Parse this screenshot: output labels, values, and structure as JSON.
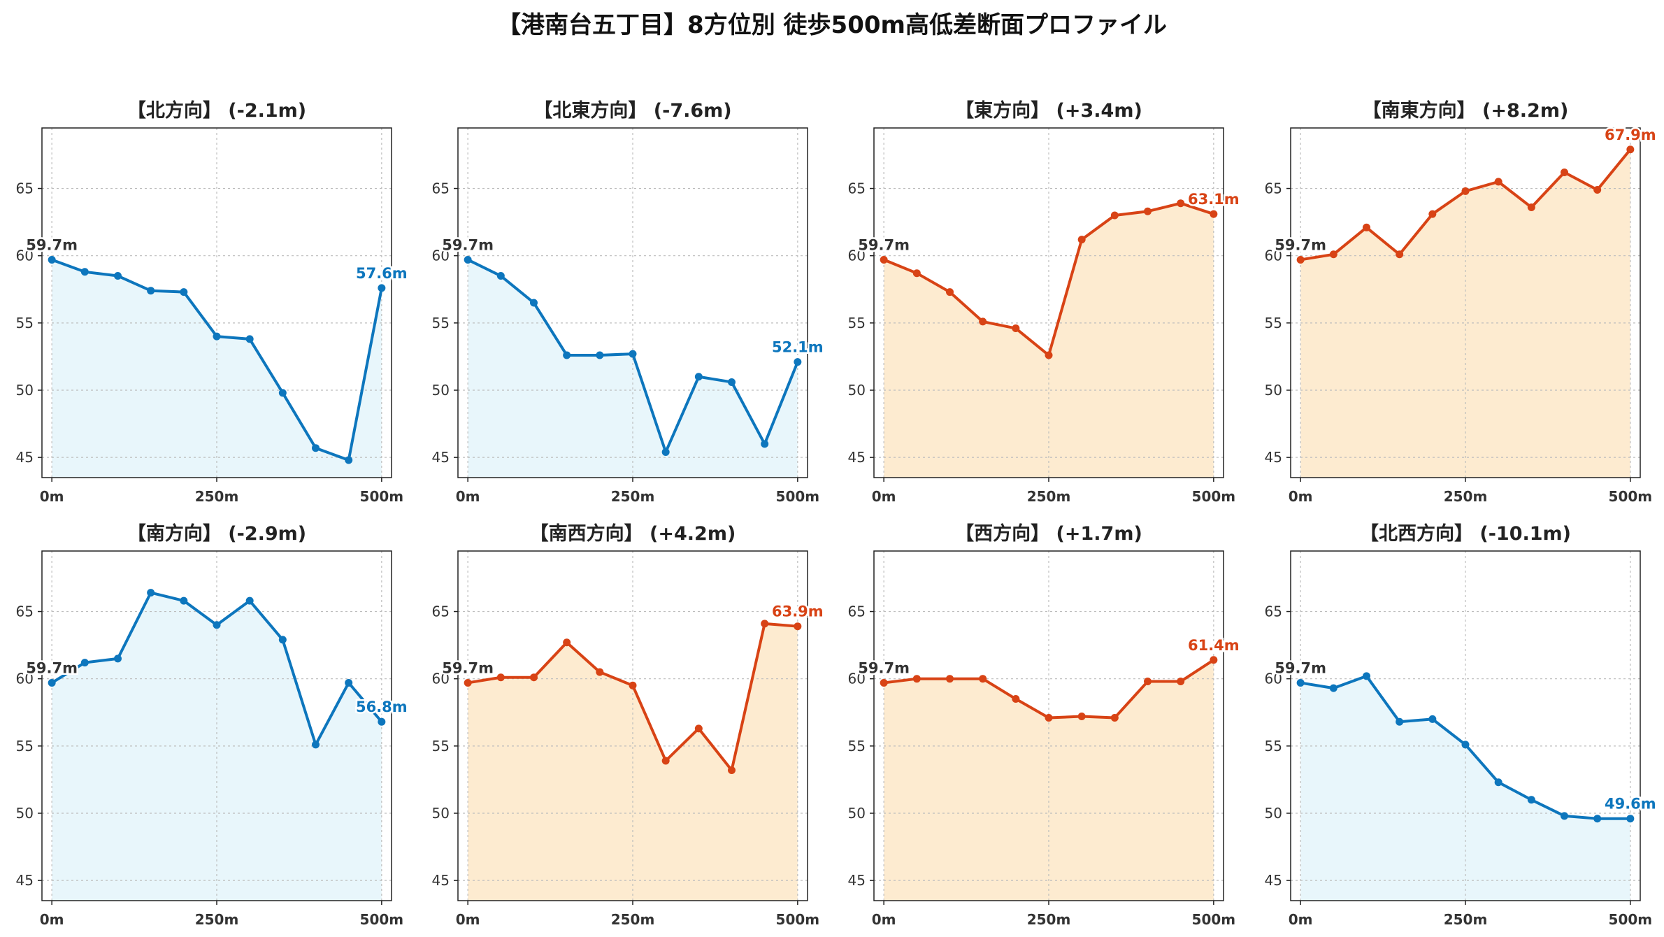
{
  "suptitle": "【港南台五丁目】8方位別 徒歩500m高低差断面プロファイル",
  "colors": {
    "up_line": "#d84315",
    "up_fill": "#fdebd0",
    "down_line": "#0d76bd",
    "down_fill": "#e8f6fb"
  },
  "chart_data": [
    {
      "type": "line",
      "title": "【北方向】 (-2.1m)",
      "trend": "down",
      "x": [
        0,
        50,
        100,
        150,
        200,
        250,
        300,
        350,
        400,
        450,
        500
      ],
      "y": [
        59.7,
        58.8,
        58.5,
        57.4,
        57.3,
        54.0,
        53.8,
        49.8,
        45.7,
        44.8,
        57.6
      ],
      "start_label": "59.7m",
      "end_label": "57.6m",
      "xticks": [
        0,
        250,
        500
      ],
      "xtick_labels": [
        "0m",
        "250m",
        "500m"
      ],
      "yticks": [
        45,
        50,
        55,
        60,
        65
      ],
      "ylim": [
        43.5,
        69.5
      ],
      "xlim": [
        -15,
        515
      ],
      "grid": true
    },
    {
      "type": "line",
      "title": "【北東方向】 (-7.6m)",
      "trend": "down",
      "x": [
        0,
        50,
        100,
        150,
        200,
        250,
        300,
        350,
        400,
        450,
        500
      ],
      "y": [
        59.7,
        58.5,
        56.5,
        52.6,
        52.6,
        52.7,
        45.4,
        51.0,
        50.6,
        46.0,
        52.1
      ],
      "start_label": "59.7m",
      "end_label": "52.1m",
      "xticks": [
        0,
        250,
        500
      ],
      "xtick_labels": [
        "0m",
        "250m",
        "500m"
      ],
      "yticks": [
        45,
        50,
        55,
        60,
        65
      ],
      "ylim": [
        43.5,
        69.5
      ],
      "xlim": [
        -15,
        515
      ],
      "grid": true
    },
    {
      "type": "line",
      "title": "【東方向】 (+3.4m)",
      "trend": "up",
      "x": [
        0,
        50,
        100,
        150,
        200,
        250,
        300,
        350,
        400,
        450,
        500
      ],
      "y": [
        59.7,
        58.7,
        57.3,
        55.1,
        54.6,
        52.6,
        61.2,
        63.0,
        63.3,
        63.9,
        63.1
      ],
      "start_label": "59.7m",
      "end_label": "63.1m",
      "xticks": [
        0,
        250,
        500
      ],
      "xtick_labels": [
        "0m",
        "250m",
        "500m"
      ],
      "yticks": [
        45,
        50,
        55,
        60,
        65
      ],
      "ylim": [
        43.5,
        69.5
      ],
      "xlim": [
        -15,
        515
      ],
      "grid": true
    },
    {
      "type": "line",
      "title": "【南東方向】 (+8.2m)",
      "trend": "up",
      "x": [
        0,
        50,
        100,
        150,
        200,
        250,
        300,
        350,
        400,
        450,
        500
      ],
      "y": [
        59.7,
        60.1,
        62.1,
        60.1,
        63.1,
        64.8,
        65.5,
        63.6,
        66.2,
        64.9,
        67.9
      ],
      "start_label": "59.7m",
      "end_label": "67.9m",
      "xticks": [
        0,
        250,
        500
      ],
      "xtick_labels": [
        "0m",
        "250m",
        "500m"
      ],
      "yticks": [
        45,
        50,
        55,
        60,
        65
      ],
      "ylim": [
        43.5,
        69.5
      ],
      "xlim": [
        -15,
        515
      ],
      "grid": true
    },
    {
      "type": "line",
      "title": "【南方向】 (-2.9m)",
      "trend": "down",
      "x": [
        0,
        50,
        100,
        150,
        200,
        250,
        300,
        350,
        400,
        450,
        500
      ],
      "y": [
        59.7,
        61.2,
        61.5,
        66.4,
        65.8,
        64.0,
        65.8,
        62.9,
        55.1,
        59.7,
        56.8
      ],
      "start_label": "59.7m",
      "end_label": "56.8m",
      "xticks": [
        0,
        250,
        500
      ],
      "xtick_labels": [
        "0m",
        "250m",
        "500m"
      ],
      "yticks": [
        45,
        50,
        55,
        60,
        65
      ],
      "ylim": [
        43.5,
        69.5
      ],
      "xlim": [
        -15,
        515
      ],
      "grid": true
    },
    {
      "type": "line",
      "title": "【南西方向】 (+4.2m)",
      "trend": "up",
      "x": [
        0,
        50,
        100,
        150,
        200,
        250,
        300,
        350,
        400,
        450,
        500
      ],
      "y": [
        59.7,
        60.1,
        60.1,
        62.7,
        60.5,
        59.5,
        53.9,
        56.3,
        53.2,
        64.1,
        63.9
      ],
      "start_label": "59.7m",
      "end_label": "63.9m",
      "xticks": [
        0,
        250,
        500
      ],
      "xtick_labels": [
        "0m",
        "250m",
        "500m"
      ],
      "yticks": [
        45,
        50,
        55,
        60,
        65
      ],
      "ylim": [
        43.5,
        69.5
      ],
      "xlim": [
        -15,
        515
      ],
      "grid": true
    },
    {
      "type": "line",
      "title": "【西方向】 (+1.7m)",
      "trend": "up_small",
      "x": [
        0,
        50,
        100,
        150,
        200,
        250,
        300,
        350,
        400,
        450,
        500
      ],
      "y": [
        59.7,
        60.0,
        60.0,
        60.0,
        58.5,
        57.1,
        57.2,
        57.1,
        59.8,
        59.8,
        61.4
      ],
      "start_label": "59.7m",
      "end_label": "61.4m",
      "xticks": [
        0,
        250,
        500
      ],
      "xtick_labels": [
        "0m",
        "250m",
        "500m"
      ],
      "yticks": [
        45,
        50,
        55,
        60,
        65
      ],
      "ylim": [
        43.5,
        69.5
      ],
      "xlim": [
        -15,
        515
      ],
      "grid": true
    },
    {
      "type": "line",
      "title": "【北西方向】 (-10.1m)",
      "trend": "down_strong",
      "x": [
        0,
        50,
        100,
        150,
        200,
        250,
        300,
        350,
        400,
        450,
        500
      ],
      "y": [
        59.7,
        59.3,
        60.2,
        56.8,
        57.0,
        55.1,
        52.3,
        51.0,
        49.8,
        49.6,
        49.6
      ],
      "start_label": "59.7m",
      "end_label": "49.6m",
      "xticks": [
        0,
        250,
        500
      ],
      "xtick_labels": [
        "0m",
        "250m",
        "500m"
      ],
      "yticks": [
        45,
        50,
        55,
        60,
        65
      ],
      "ylim": [
        43.5,
        69.5
      ],
      "xlim": [
        -15,
        515
      ],
      "grid": true
    }
  ]
}
